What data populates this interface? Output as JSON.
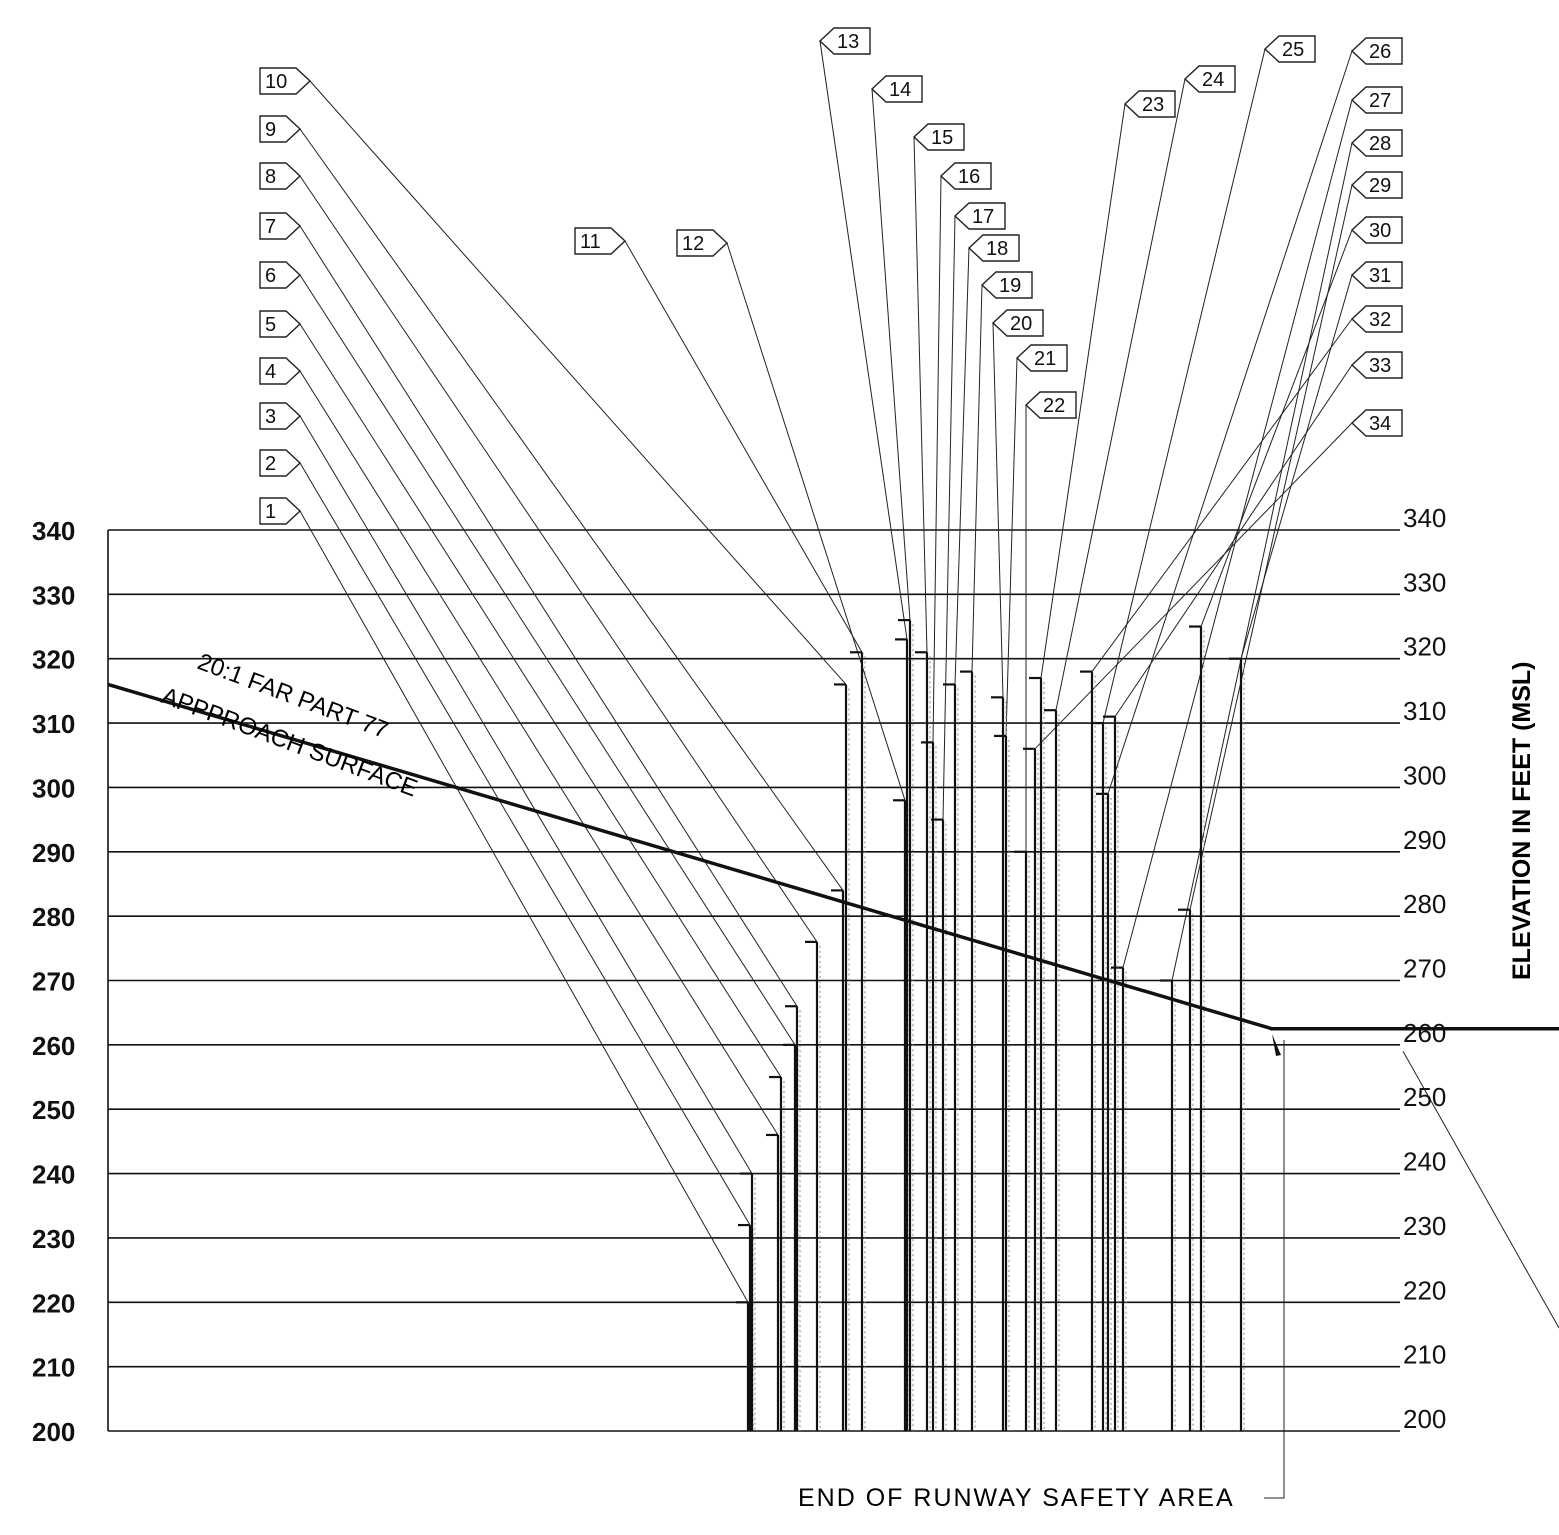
{
  "drawing": {
    "axis_title": "ELEVATION IN FEET (MSL)",
    "surface_label_line1": "20:1 FAR PART 77",
    "surface_label_line2": "APPPROACH SURFACE",
    "rsa_label": "END OF RUNWAY SAFETY AREA",
    "y_ticks": [
      340,
      330,
      320,
      310,
      300,
      290,
      280,
      270,
      260,
      250,
      240,
      230,
      220,
      210,
      200
    ],
    "ylim": [
      200,
      340
    ],
    "approach_surface": {
      "start_elevation": 316,
      "end_elevation": 262.5,
      "flat_elevation": 262.5
    },
    "obstructions": [
      {
        "id": "1",
        "top": 220
      },
      {
        "id": "2",
        "top": 232
      },
      {
        "id": "3",
        "top": 240
      },
      {
        "id": "4",
        "top": 246
      },
      {
        "id": "5",
        "top": 255
      },
      {
        "id": "6",
        "top": 260
      },
      {
        "id": "7",
        "top": 266
      },
      {
        "id": "8",
        "top": 276
      },
      {
        "id": "9",
        "top": 284
      },
      {
        "id": "10",
        "top": 316
      },
      {
        "id": "11",
        "top": 321
      },
      {
        "id": "12",
        "top": 298
      },
      {
        "id": "13",
        "top": 323
      },
      {
        "id": "14",
        "top": 326
      },
      {
        "id": "15",
        "top": 321
      },
      {
        "id": "16",
        "top": 307
      },
      {
        "id": "17",
        "top": 295
      },
      {
        "id": "18",
        "top": 316
      },
      {
        "id": "19",
        "top": 318
      },
      {
        "id": "20",
        "top": 314
      },
      {
        "id": "21",
        "top": 308
      },
      {
        "id": "22",
        "top": 290
      },
      {
        "id": "23",
        "top": 317
      },
      {
        "id": "24",
        "top": 312
      },
      {
        "id": "25",
        "top": 310
      },
      {
        "id": "26",
        "top": 299
      },
      {
        "id": "27",
        "top": 272
      },
      {
        "id": "28",
        "top": 270
      },
      {
        "id": "29",
        "top": 281
      },
      {
        "id": "30",
        "top": 325
      },
      {
        "id": "31",
        "top": 320
      },
      {
        "id": "32",
        "top": 318
      },
      {
        "id": "33",
        "top": 311
      },
      {
        "id": "34",
        "top": 306
      }
    ]
  }
}
